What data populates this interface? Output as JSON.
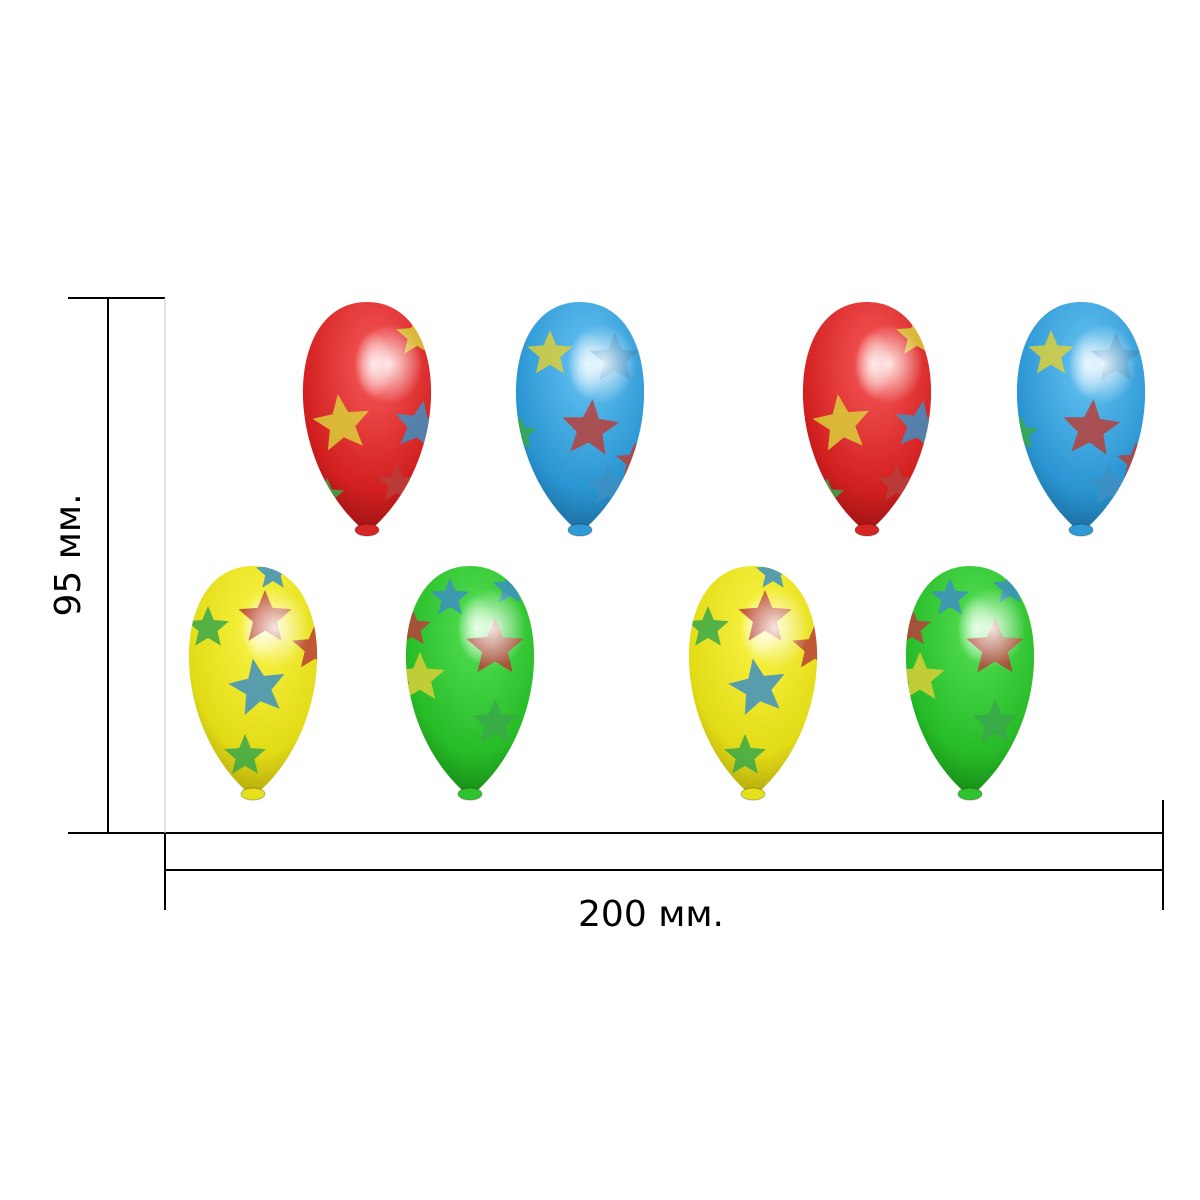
{
  "dimensions": {
    "height_label": "95 мм.",
    "width_label": "200 мм."
  },
  "colors": {
    "red": "#d62525",
    "blue": "#2e9bd6",
    "yellow": "#e6e01c",
    "green": "#2fc42f",
    "star_yellow": "#d9cf3a",
    "star_red": "#b8403a",
    "star_blue": "#3d8fc2",
    "star_green": "#3aa84a"
  },
  "balloons": [
    {
      "name": "balloon-red-1",
      "color": "red"
    },
    {
      "name": "balloon-blue-1",
      "color": "blue"
    },
    {
      "name": "balloon-red-2",
      "color": "red"
    },
    {
      "name": "balloon-blue-2",
      "color": "blue"
    },
    {
      "name": "balloon-yellow-1",
      "color": "yellow"
    },
    {
      "name": "balloon-green-1",
      "color": "green"
    },
    {
      "name": "balloon-yellow-2",
      "color": "yellow"
    },
    {
      "name": "balloon-green-2",
      "color": "green"
    }
  ]
}
